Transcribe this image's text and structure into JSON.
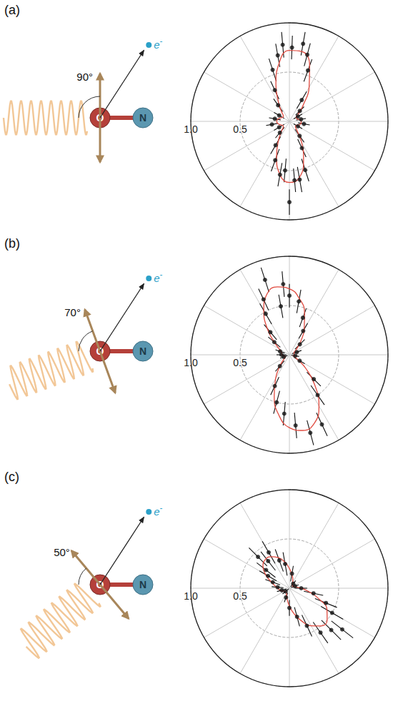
{
  "chart_data": [
    {
      "type": "polar_scatter",
      "panel": "(a)",
      "schematic": {
        "atoms": [
          "O",
          "N"
        ],
        "electron": "e",
        "charge": "-",
        "angle_label": "90°",
        "polarization_angle": 90
      },
      "xlim": [
        -180,
        180
      ],
      "xticks": [
        -180,
        -150,
        -120,
        -90,
        -60,
        -30,
        0,
        30,
        60,
        90,
        120,
        150,
        180
      ],
      "ylim": [
        0,
        1
      ],
      "yticks": [
        0.5,
        {
          "value": 1,
          "label": "1.0"
        }
      ],
      "tick_labels": "y",
      "grid": true,
      "series": [
        {
          "type": "scatter",
          "color": "#111111",
          "x": [
            60,
            70,
            75,
            80,
            88,
            95,
            100,
            108,
            115,
            125,
            150,
            170,
            -170,
            -150,
            -130,
            -120,
            -110,
            -100,
            -95,
            -90,
            -85,
            -80,
            -72,
            -65,
            -55,
            -30,
            -10,
            10,
            30,
            45
          ],
          "values": [
            0.25,
            0.55,
            0.7,
            0.8,
            0.75,
            0.78,
            0.68,
            0.55,
            0.35,
            0.2,
            0.12,
            0.15,
            0.18,
            0.12,
            0.15,
            0.28,
            0.42,
            0.55,
            0.5,
            0.82,
            0.6,
            0.6,
            0.52,
            0.3,
            0.18,
            0.1,
            0.15,
            0.12,
            0.1,
            0.15
          ],
          "error": [
            0.1,
            0.12,
            0.12,
            0.12,
            0.12,
            0.13,
            0.12,
            0.12,
            0.1,
            0.08,
            0.06,
            0.06,
            0.06,
            0.06,
            0.07,
            0.1,
            0.12,
            0.12,
            0.12,
            0.13,
            0.12,
            0.13,
            0.12,
            0.1,
            0.08,
            0.05,
            0.06,
            0.05,
            0.05,
            0.06
          ]
        },
        {
          "type": "line",
          "color": "#e04a3f",
          "x": [
            -180,
            -170,
            -160,
            -150,
            -140,
            -130,
            -120,
            -110,
            -100,
            -90,
            -80,
            -70,
            -60,
            -50,
            -40,
            -30,
            -20,
            -10,
            0,
            10,
            20,
            30,
            40,
            50,
            60,
            70,
            80,
            90,
            100,
            110,
            120,
            130,
            140,
            150,
            160,
            170,
            180
          ],
          "values": [
            0.13,
            0.12,
            0.1,
            0.08,
            0.08,
            0.12,
            0.22,
            0.38,
            0.55,
            0.62,
            0.58,
            0.42,
            0.25,
            0.12,
            0.08,
            0.08,
            0.1,
            0.12,
            0.12,
            0.1,
            0.08,
            0.08,
            0.12,
            0.22,
            0.4,
            0.6,
            0.72,
            0.72,
            0.6,
            0.4,
            0.22,
            0.12,
            0.08,
            0.08,
            0.1,
            0.12,
            0.13
          ]
        }
      ]
    },
    {
      "type": "polar_scatter",
      "panel": "(b)",
      "schematic": {
        "atoms": [
          "O",
          "N"
        ],
        "electron": "e",
        "charge": "-",
        "angle_label": "70°",
        "polarization_angle": 70
      },
      "xlim": [
        -180,
        180
      ],
      "xticks": [
        -180,
        -150,
        -120,
        -90,
        -60,
        -30,
        0,
        30,
        60,
        90,
        120,
        150,
        180
      ],
      "ylim": [
        0,
        1
      ],
      "yticks": [
        0.5,
        {
          "value": 1,
          "label": "1.0"
        }
      ],
      "tick_labels": "y",
      "grid": true,
      "series": [
        {
          "type": "scatter",
          "color": "#111111",
          "x": [
            70,
            80,
            90,
            95,
            100,
            108,
            115,
            120,
            130,
            140,
            160,
            180,
            -160,
            -130,
            -115,
            -105,
            -95,
            -85,
            -75,
            -65,
            -55,
            -45,
            -30,
            -10,
            20,
            45,
            60
          ],
          "values": [
            0.4,
            0.55,
            0.6,
            0.72,
            0.5,
            0.8,
            0.62,
            0.48,
            0.3,
            0.2,
            0.1,
            0.08,
            0.06,
            0.15,
            0.35,
            0.5,
            0.6,
            0.72,
            0.82,
            0.78,
            0.5,
            0.35,
            0.12,
            0.06,
            0.08,
            0.15,
            0.28
          ],
          "error": [
            0.1,
            0.12,
            0.12,
            0.13,
            0.12,
            0.13,
            0.12,
            0.12,
            0.1,
            0.08,
            0.05,
            0.05,
            0.04,
            0.07,
            0.1,
            0.12,
            0.12,
            0.13,
            0.13,
            0.13,
            0.12,
            0.1,
            0.06,
            0.04,
            0.05,
            0.07,
            0.09
          ]
        },
        {
          "type": "line",
          "color": "#e04a3f",
          "x": [
            -180,
            -170,
            -160,
            -150,
            -140,
            -130,
            -120,
            -110,
            -100,
            -90,
            -80,
            -70,
            -60,
            -50,
            -40,
            -30,
            -20,
            -10,
            0,
            10,
            20,
            30,
            40,
            50,
            60,
            70,
            80,
            90,
            100,
            110,
            120,
            130,
            140,
            150,
            160,
            170,
            180
          ],
          "values": [
            0.08,
            0.06,
            0.05,
            0.05,
            0.08,
            0.15,
            0.28,
            0.45,
            0.62,
            0.74,
            0.78,
            0.74,
            0.6,
            0.4,
            0.22,
            0.1,
            0.05,
            0.04,
            0.05,
            0.05,
            0.05,
            0.06,
            0.1,
            0.18,
            0.3,
            0.45,
            0.58,
            0.67,
            0.7,
            0.66,
            0.52,
            0.35,
            0.2,
            0.12,
            0.09,
            0.08,
            0.08
          ]
        }
      ]
    },
    {
      "type": "polar_scatter",
      "panel": "(c)",
      "schematic": {
        "atoms": [
          "O",
          "N"
        ],
        "electron": "e",
        "charge": "-",
        "angle_label": "50°",
        "polarization_angle": 50
      },
      "xlim": [
        -180,
        180
      ],
      "xticks": [
        -180,
        -150,
        -120,
        -90,
        -60,
        -30,
        0,
        30,
        60,
        90,
        120,
        150,
        180
      ],
      "ylim": [
        0,
        1
      ],
      "yticks": [
        0.5,
        {
          "value": 1,
          "label": "1.0"
        }
      ],
      "tick_labels": "y",
      "grid": true,
      "series": [
        {
          "type": "scatter",
          "color": "#111111",
          "x": [
            100,
            110,
            120,
            128,
            135,
            142,
            150,
            160,
            175,
            -165,
            -140,
            -110,
            -90,
            -75,
            -65,
            -55,
            -45,
            -38,
            -30,
            -22,
            -12,
            0,
            20,
            50,
            80
          ],
          "values": [
            0.25,
            0.3,
            0.42,
            0.35,
            0.45,
            0.3,
            0.25,
            0.18,
            0.12,
            0.08,
            0.05,
            0.1,
            0.2,
            0.3,
            0.42,
            0.55,
            0.6,
            0.68,
            0.5,
            0.4,
            0.25,
            0.12,
            0.06,
            0.06,
            0.15
          ],
          "error": [
            0.12,
            0.12,
            0.13,
            0.12,
            0.13,
            0.12,
            0.1,
            0.08,
            0.06,
            0.05,
            0.04,
            0.05,
            0.08,
            0.1,
            0.12,
            0.13,
            0.14,
            0.14,
            0.13,
            0.12,
            0.1,
            0.06,
            0.04,
            0.04,
            0.08
          ]
        },
        {
          "type": "line",
          "color": "#e04a3f",
          "x": [
            -180,
            -170,
            -160,
            -150,
            -140,
            -130,
            -120,
            -110,
            -100,
            -90,
            -80,
            -70,
            -60,
            -50,
            -40,
            -30,
            -20,
            -10,
            0,
            10,
            20,
            30,
            40,
            50,
            60,
            70,
            80,
            90,
            100,
            110,
            120,
            130,
            140,
            150,
            160,
            170,
            180
          ],
          "values": [
            0.12,
            0.1,
            0.08,
            0.06,
            0.05,
            0.05,
            0.06,
            0.08,
            0.12,
            0.18,
            0.26,
            0.35,
            0.44,
            0.5,
            0.5,
            0.44,
            0.32,
            0.2,
            0.12,
            0.07,
            0.05,
            0.04,
            0.04,
            0.05,
            0.07,
            0.1,
            0.14,
            0.2,
            0.27,
            0.33,
            0.37,
            0.38,
            0.35,
            0.28,
            0.2,
            0.15,
            0.12
          ]
        }
      ]
    }
  ]
}
